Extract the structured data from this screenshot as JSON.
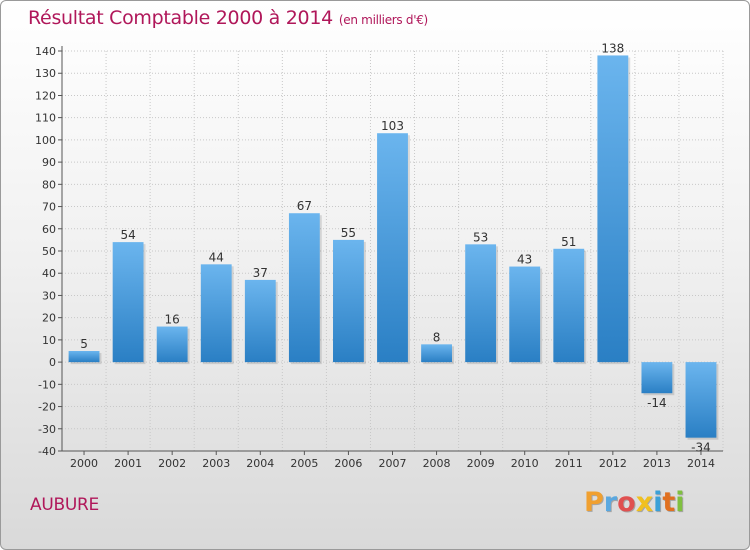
{
  "chart_data": {
    "type": "bar",
    "title": "Résultat Comptable 2000 à 2014",
    "subtitle": "(en milliers d'€)",
    "categories": [
      "2000",
      "2001",
      "2002",
      "2003",
      "2004",
      "2005",
      "2006",
      "2007",
      "2008",
      "2009",
      "2010",
      "2011",
      "2012",
      "2013",
      "2014"
    ],
    "values": [
      5,
      54,
      16,
      44,
      37,
      67,
      55,
      103,
      8,
      53,
      43,
      51,
      138,
      -14,
      -34
    ],
    "ylim": [
      -40,
      140
    ],
    "yticks": [
      -40,
      -30,
      -20,
      -10,
      0,
      10,
      20,
      30,
      40,
      50,
      60,
      70,
      80,
      90,
      100,
      110,
      120,
      130,
      140
    ],
    "grid": true,
    "xlabel": "",
    "ylabel": ""
  },
  "commune": "AUBURE",
  "logo": {
    "letters": [
      "P",
      "r",
      "o",
      "x",
      "i",
      "t",
      "i"
    ],
    "colors": [
      "#f0a030",
      "#5aa8e0",
      "#e05050",
      "#f0c020",
      "#3aa0d8",
      "#e07020",
      "#80c040"
    ]
  },
  "colors": {
    "title": "#b0175a",
    "bar_light": "#6bb5ee",
    "bar_dark": "#2a7fc4",
    "grid": "#c8c8c8"
  }
}
